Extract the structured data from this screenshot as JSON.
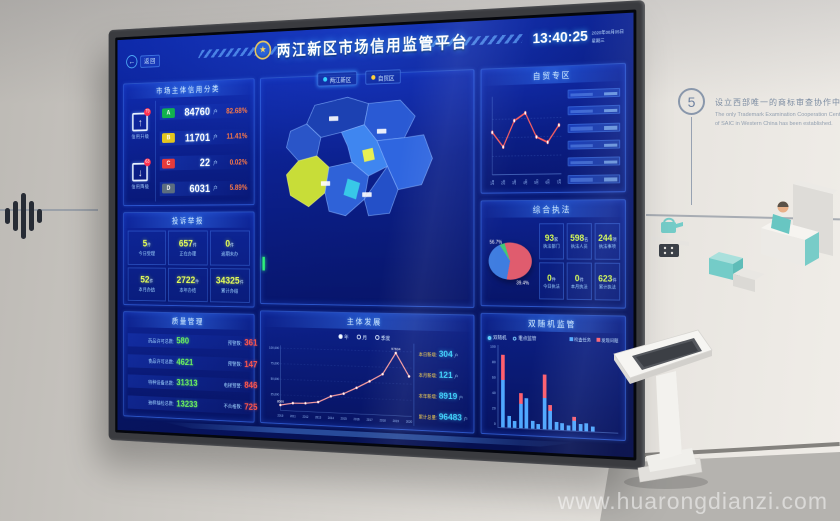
{
  "scene": {
    "watermark": "www.huarongdianzi.com",
    "wall_step": {
      "number": "5",
      "title_zh": "设立西部唯一的商标审查协作中心。",
      "title_en": "The only Trademark Examination Cooperation Center of SAIC in Western China has been established."
    }
  },
  "screen": {
    "back_label": "返回",
    "header": {
      "title": "两江新区市场信用监管平台",
      "time": "13:40:25",
      "date": "2020年08月05日",
      "weekday": "星期三"
    },
    "map_tabs": [
      {
        "label": "两江新区",
        "dot": "#35d2ff",
        "active": true
      },
      {
        "label": "自贸区",
        "dot": "#ffd33a",
        "active": false
      }
    ],
    "credit_panel": {
      "title": "市场主体信用分类",
      "upgrade": {
        "label": "信用升级",
        "badge": "79"
      },
      "downgrade": {
        "label": "信用降级",
        "badge": "63"
      },
      "rows": [
        {
          "grade": "A",
          "color": "#12b24e",
          "count": "84760",
          "unit": "户",
          "percent": "82.68%"
        },
        {
          "grade": "B",
          "color": "#e3c61f",
          "count": "11701",
          "unit": "户",
          "percent": "11.41%"
        },
        {
          "grade": "C",
          "color": "#e53b3b",
          "count": "22",
          "unit": "户",
          "percent": "0.02%"
        },
        {
          "grade": "D",
          "color": "#5c6e80",
          "count": "6031",
          "unit": "户",
          "percent": "5.89%"
        }
      ]
    },
    "complaints_panel": {
      "title": "投诉举报",
      "cells": [
        {
          "value": "5",
          "unit": "件",
          "label": "今日受理"
        },
        {
          "value": "657",
          "unit": "件",
          "label": "正在办理"
        },
        {
          "value": "0",
          "unit": "件",
          "label": "逾期未办"
        },
        {
          "value": "52",
          "unit": "件",
          "label": "本月办结"
        },
        {
          "value": "2722",
          "unit": "件",
          "label": "本年办结"
        },
        {
          "value": "34325",
          "unit": "件",
          "label": "累计办结"
        }
      ]
    },
    "quality_panel": {
      "title": "质量管理",
      "rows": [
        {
          "l_label": "药品许可总数:",
          "l_value": "580",
          "r_label": "预警数:",
          "r_value": "361"
        },
        {
          "l_label": "食品许可总数:",
          "l_value": "4621",
          "r_label": "预警数:",
          "r_value": "147"
        },
        {
          "l_label": "特种设备总数:",
          "l_value": "31313",
          "r_label": "电梯预警:",
          "r_value": "846"
        },
        {
          "l_label": "抽样抽检总数:",
          "l_value": "13233",
          "r_label": "不合格数:",
          "r_value": "725"
        }
      ]
    },
    "development_panel": {
      "title": "主体发展",
      "legend": [
        "年",
        "月",
        "季度"
      ],
      "stats": [
        {
          "label": "本日新增:",
          "value": "304",
          "unit": "户"
        },
        {
          "label": "本月新增:",
          "value": "121",
          "unit": "户"
        },
        {
          "label": "本年新增:",
          "value": "8919",
          "unit": "户"
        },
        {
          "label": "累计总量:",
          "value": "96483",
          "unit": "户"
        }
      ]
    },
    "ftz_panel": {
      "title": "自贸专区",
      "placeholder_rows": 6
    },
    "enforcement_panel": {
      "title": "综合执法",
      "pie_labels": [
        "56.7%",
        "39.4%"
      ],
      "cells": [
        {
          "value": "93",
          "unit": "家",
          "label": "执法部门"
        },
        {
          "value": "598",
          "unit": "名",
          "label": "执法人员"
        },
        {
          "value": "244",
          "unit": "项",
          "label": "执法事项"
        },
        {
          "value": "0",
          "unit": "件",
          "label": "今日执法"
        },
        {
          "value": "0",
          "unit": "件",
          "label": "本月执法"
        },
        {
          "value": "623",
          "unit": "件",
          "label": "累计执法"
        }
      ]
    },
    "random_panel": {
      "title": "双随机监管",
      "tabs": [
        {
          "label": "双随机",
          "active": true
        },
        {
          "label": "重点监管",
          "active": false
        }
      ]
    }
  },
  "chart_data": [
    {
      "type": "table",
      "title": "市场主体信用分类",
      "categories": [
        "A",
        "B",
        "C",
        "D"
      ],
      "values": [
        84760,
        11701,
        22,
        6031
      ],
      "percents": [
        "82.68%",
        "11.41%",
        "0.02%",
        "5.89%"
      ]
    },
    {
      "type": "line",
      "title": "主体发展",
      "x": [
        "2010",
        "2011",
        "2012",
        "2013",
        "2014",
        "2015",
        "2016",
        "2017",
        "2018",
        "2019",
        "2020"
      ],
      "values": [
        8606,
        12500,
        13200,
        16000,
        26000,
        31000,
        41000,
        52000,
        64000,
        97634,
        62000
      ],
      "ylim": [
        0,
        100000
      ],
      "yticks": [
        "25,000",
        "50,000",
        "75,000",
        "100,000"
      ],
      "point_labels": [
        {
          "x": "2010",
          "text": "8606"
        },
        {
          "x": "2019",
          "text": "97634"
        }
      ],
      "line_color": "#ffa0a0",
      "legend": [
        "年",
        "月",
        "季度"
      ],
      "legend_position": "top"
    },
    {
      "type": "line",
      "title": "自贸专区",
      "x": [
        "1月",
        "2月",
        "3月",
        "4月",
        "5月",
        "6月",
        "7月"
      ],
      "values": [
        46,
        30,
        58,
        66,
        40,
        34,
        52
      ],
      "ylim": [
        0,
        80
      ],
      "yticks": [
        "20",
        "40",
        "60"
      ],
      "line_color": "#ff6060"
    },
    {
      "type": "pie",
      "title": "综合执法",
      "slices": [
        {
          "label": "56.7%",
          "value": 56.7,
          "color": "#e05c6e"
        },
        {
          "label": "39.4%",
          "value": 39.4,
          "color": "#3f7de0"
        },
        {
          "label": "",
          "value": 3.9,
          "color": "#43c878"
        }
      ]
    },
    {
      "type": "bar",
      "title": "双随机监管",
      "x": [
        "1",
        "2",
        "3",
        "4",
        "5",
        "6",
        "7",
        "8",
        "9",
        "10",
        "11",
        "12",
        "13",
        "14",
        "15",
        "16"
      ],
      "series": [
        {
          "name": "检查任务",
          "color": "#4fa8ff",
          "values": [
            58,
            14,
            8,
            30,
            36,
            10,
            6,
            38,
            22,
            10,
            8,
            6,
            12,
            8,
            10,
            6
          ]
        },
        {
          "name": "发现问题",
          "color": "#ff5f6e",
          "values": [
            30,
            0,
            0,
            12,
            0,
            0,
            0,
            28,
            8,
            0,
            0,
            0,
            4,
            0,
            0,
            0
          ]
        }
      ],
      "ylim": [
        0,
        100
      ],
      "yticks": [
        "100",
        "80",
        "60",
        "40",
        "20",
        "0"
      ]
    }
  ]
}
